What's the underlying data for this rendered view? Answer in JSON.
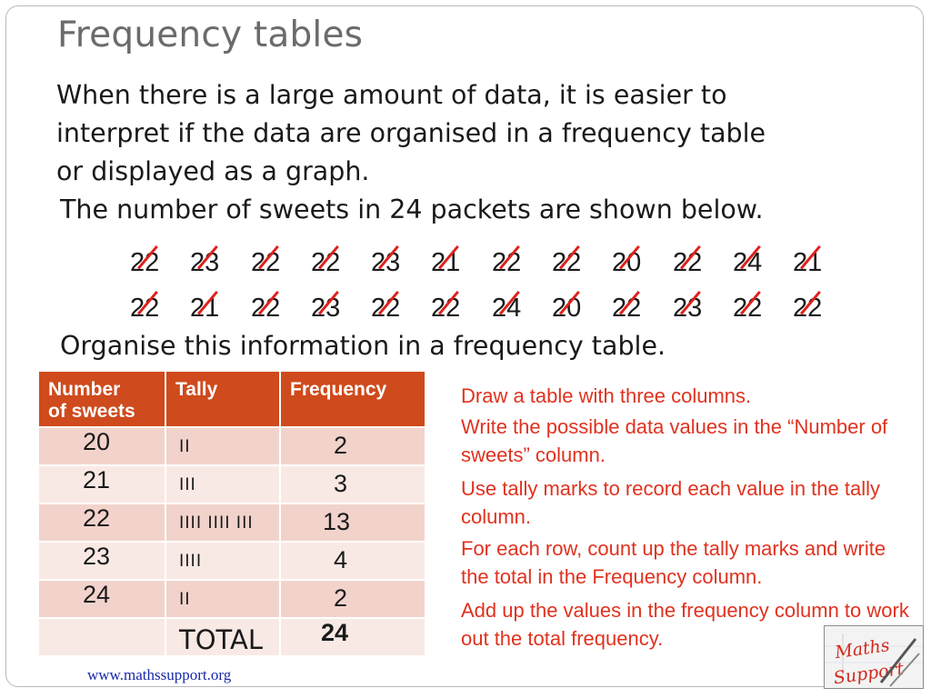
{
  "title": "Frequency tables",
  "intro_lines": [
    "When there is a large amount of data, it is easier to",
    "interpret if the data are organised in a frequency table",
    "or displayed as a graph."
  ],
  "packets_sentence": "The number of sweets in 24 packets are shown below.",
  "data_row1": [
    "22",
    "23",
    "22",
    "22",
    "23",
    "21",
    "22",
    "22",
    "20",
    "22",
    "24",
    "21"
  ],
  "data_row2": [
    "22",
    "21",
    "22",
    "23",
    "22",
    "22",
    "24",
    "20",
    "22",
    "23",
    "22",
    "22"
  ],
  "organise_text": "Organise this information in a frequency table.",
  "table": {
    "headers": [
      "Number of sweets",
      "Tally",
      "Frequency"
    ],
    "header_number_lines": [
      "Number",
      "of sweets"
    ],
    "rows": [
      {
        "value": "20",
        "tally": "II",
        "frequency": "2"
      },
      {
        "value": "21",
        "tally": "III",
        "frequency": "3"
      },
      {
        "value": "22",
        "tally": "IIII IIII III",
        "frequency": "13"
      },
      {
        "value": "23",
        "tally": "IIII",
        "frequency": "4"
      },
      {
        "value": "24",
        "tally": "II",
        "frequency": "2"
      }
    ],
    "total_label": "TOTAL",
    "total_value": "24"
  },
  "steps": [
    "Draw a table with three columns.",
    "Write the possible data values in the “Number of sweets” column.",
    "Use tally marks to record each value in the tally column.",
    "For each row, count up the tally marks and write the total in the Frequency column.",
    "Add up the values in the frequency column to work out the total frequency."
  ],
  "logo_text": "Maths Support",
  "footer_link": "www.mathssupport.org",
  "colors": {
    "header_bg": "#cf4a1c",
    "row_dark": "#f2d3cb",
    "row_light": "#f9e9e5",
    "step_text": "#e0321f",
    "tick_mark": "#e0201b",
    "title": "#6b6b6b"
  }
}
